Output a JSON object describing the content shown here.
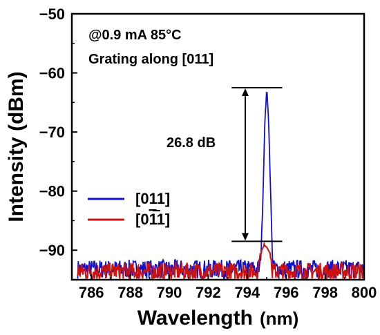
{
  "chart_data": {
    "type": "line",
    "title": "",
    "xlabel": "Wavelength",
    "xlabel_unit": "(nm)",
    "ylabel": "Intensity (dBm)",
    "xlim": [
      785,
      800
    ],
    "ylim": [
      -95,
      -50
    ],
    "x_ticks": [
      786,
      788,
      790,
      792,
      794,
      796,
      798,
      800
    ],
    "x_tick_labels": [
      "786",
      "788",
      "790",
      "792",
      "794",
      "796",
      "798",
      "800"
    ],
    "y_ticks": [
      -90,
      -80,
      -70,
      -60,
      -50
    ],
    "y_tick_labels": [
      "−90",
      "−80",
      "−70",
      "−60",
      "−50"
    ],
    "grid": false,
    "legend_position": "center-left",
    "annotations": {
      "condition": "@0.9 mA  85°C",
      "grating": "Grating along [011]",
      "smsr": "26.8 dB",
      "smsr_top_dbm": -62.5,
      "smsr_bottom_dbm": -88.5,
      "smsr_x_nm": 793.9
    },
    "noise_floor_dbm": [
      -95,
      -92
    ],
    "series": [
      {
        "name": "[011]",
        "color": "#1010d0",
        "peak_wavelength_nm": 795.0,
        "peak_intensity_dbm": -62.5,
        "x": [
          785.3,
          786.0,
          787.0,
          788.0,
          789.0,
          790.0,
          791.0,
          792.0,
          793.0,
          794.0,
          794.5,
          794.7,
          794.8,
          794.9,
          795.0,
          795.1,
          795.2,
          795.3,
          795.5,
          796.0,
          797.0,
          798.0,
          799.0,
          800.0
        ],
        "y": [
          -93.5,
          -93.3,
          -93.0,
          -93.6,
          -92.9,
          -93.4,
          -93.2,
          -93.5,
          -93.1,
          -93.3,
          -92.8,
          -91.5,
          -82.0,
          -69.0,
          -62.5,
          -68.0,
          -80.0,
          -92.0,
          -93.2,
          -93.0,
          -93.5,
          -93.1,
          -93.4,
          -93.2
        ]
      },
      {
        "name": "[01̅1]",
        "label_html_parts": [
          "[0",
          "1",
          "1]"
        ],
        "color": "#cc1111",
        "peak_wavelength_nm": 794.9,
        "peak_intensity_dbm": -89.0,
        "x": [
          785.3,
          786.0,
          787.0,
          788.0,
          789.0,
          790.0,
          791.0,
          792.0,
          793.0,
          794.0,
          794.5,
          794.7,
          794.9,
          795.1,
          795.3,
          795.5,
          796.0,
          797.0,
          798.0,
          799.0,
          800.0
        ],
        "y": [
          -94.0,
          -93.6,
          -93.8,
          -93.5,
          -94.0,
          -93.7,
          -93.9,
          -93.6,
          -94.1,
          -93.8,
          -93.0,
          -90.5,
          -89.0,
          -89.8,
          -92.5,
          -93.6,
          -93.9,
          -93.7,
          -94.0,
          -93.8,
          -93.9
        ]
      }
    ]
  }
}
